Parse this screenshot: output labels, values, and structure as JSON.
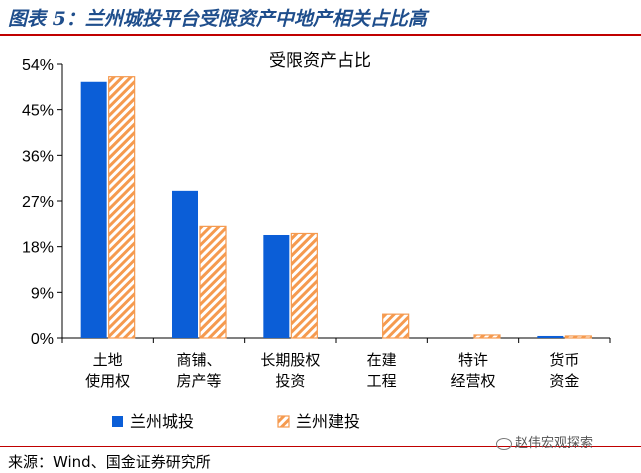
{
  "figure": {
    "title": "图表 5：兰州城投平台受限资产中地产相关占比高",
    "source": "来源：Wind、国金证券研究所",
    "watermark": "赵伟宏观探索"
  },
  "chart_data": {
    "type": "bar",
    "title": "受限资产占比",
    "xlabel": "",
    "ylabel": "",
    "ylim": [
      0,
      54
    ],
    "yticks": [
      0,
      9,
      18,
      27,
      36,
      45,
      54
    ],
    "ytick_labels": [
      "0%",
      "9%",
      "18%",
      "27%",
      "36%",
      "45%",
      "54%"
    ],
    "categories": [
      [
        "土地",
        "使用权"
      ],
      [
        "商铺、",
        "房产等"
      ],
      [
        "长期股权",
        "投资"
      ],
      [
        "在建",
        "工程"
      ],
      [
        "特许",
        "经营权"
      ],
      [
        "货币",
        "资金"
      ]
    ],
    "series": [
      {
        "name": "兰州城投",
        "values": [
          50.5,
          29.0,
          20.3,
          0.0,
          0.0,
          0.4
        ],
        "color": "#0b5ed7",
        "pattern": "solid"
      },
      {
        "name": "兰州建投",
        "values": [
          51.5,
          22.0,
          20.6,
          4.7,
          0.6,
          0.4
        ],
        "color": "#f59a4f",
        "pattern": "hatched"
      }
    ],
    "grid": false,
    "legend": "bottom-left"
  }
}
